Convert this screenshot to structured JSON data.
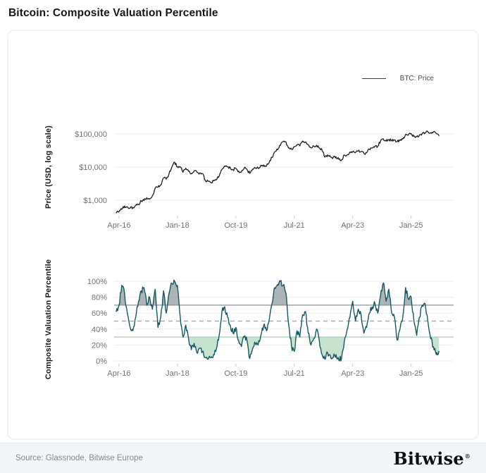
{
  "title": "Bitcoin: Composite Valuation Percentile",
  "legend": {
    "items": [
      {
        "label": "BTC: Price",
        "color": "#3a3d40"
      }
    ]
  },
  "footer": {
    "source": "Source: Glassnode, Bitwise Europe",
    "brand": "Bitwise",
    "brand_mark": "®"
  },
  "colors": {
    "price_line": "#1f1f1f",
    "percentile_line": "#155863",
    "above_fill": "#99a1a6",
    "below_fill": "#c3e2cd",
    "gridline": "#ededee",
    "threshold_high": "#8c9196",
    "threshold_mid": "#9aa0a6",
    "threshold_low": "#a5cdb4"
  },
  "chart_data": [
    {
      "type": "line",
      "panel": "price",
      "ylabel": "Price (USD, log scale)",
      "yscale": "log",
      "ytick_labels": [
        "$100,000",
        "$10,000",
        "$1,000"
      ],
      "ytick_values": [
        100000,
        10000,
        1000
      ],
      "ylim": [
        400,
        160000
      ],
      "x_monthly_start": "Mar-16",
      "x_monthly_end": "Nov-25",
      "xtick_labels": [
        "Apr-16",
        "Jan-18",
        "Oct-19",
        "Jul-21",
        "Apr-23",
        "Jan-25"
      ],
      "xtick_indices": [
        1,
        22,
        43,
        64,
        85,
        106
      ],
      "legend_position": "top-right",
      "grid": true,
      "series": [
        {
          "name": "BTC: Price",
          "color": "#1f1f1f",
          "values": [
            415,
            450,
            530,
            670,
            625,
            575,
            610,
            700,
            745,
            960,
            970,
            1190,
            1080,
            1350,
            2300,
            2480,
            2875,
            4700,
            4340,
            6450,
            10000,
            14100,
            10200,
            10300,
            6930,
            9240,
            7490,
            6400,
            7750,
            7030,
            6630,
            6300,
            4020,
            3740,
            3460,
            3850,
            4100,
            5320,
            8560,
            10800,
            10080,
            9630,
            8290,
            9150,
            7550,
            7190,
            9350,
            8600,
            6440,
            8660,
            9450,
            9140,
            11350,
            11650,
            10780,
            13800,
            19700,
            29000,
            33100,
            45100,
            58800,
            57750,
            37300,
            35000,
            41500,
            47150,
            43800,
            61300,
            57000,
            46200,
            38480,
            43200,
            45540,
            37630,
            31790,
            19985,
            23300,
            20050,
            19430,
            20490,
            17160,
            16540,
            23140,
            23150,
            28480,
            29250,
            27220,
            30480,
            29230,
            25930,
            26970,
            34650,
            37720,
            42270,
            42580,
            61200,
            71330,
            60640,
            67540,
            62680,
            64620,
            58970,
            63330,
            70220,
            96400,
            93430,
            102400,
            84380,
            82550,
            94180,
            104600,
            107100,
            115800,
            108200,
            114000,
            104000,
            88000
          ]
        }
      ]
    },
    {
      "type": "line",
      "panel": "percentile",
      "ylabel": "Composite Valuation Percentile",
      "ytick_labels": [
        "100%",
        "80%",
        "60%",
        "40%",
        "20%",
        "0%"
      ],
      "ytick_values": [
        100,
        80,
        60,
        40,
        20,
        0
      ],
      "ylim": [
        0,
        100
      ],
      "x_monthly_start": "Mar-16",
      "x_monthly_end": "Nov-25",
      "xtick_labels": [
        "Apr-16",
        "Jan-18",
        "Oct-19",
        "Jul-21",
        "Apr-23",
        "Jan-25"
      ],
      "xtick_indices": [
        1,
        22,
        43,
        64,
        85,
        106
      ],
      "grid": true,
      "reference_lines": [
        {
          "value": 70,
          "style": "solid",
          "color": "#8c9196"
        },
        {
          "value": 50,
          "style": "dashed",
          "color": "#9aa0a6"
        },
        {
          "value": 30,
          "style": "solid",
          "color": "#a5cdb4"
        }
      ],
      "shading": {
        "above": {
          "threshold": 70,
          "color": "#99a1a6",
          "meaning": "overvalued zone"
        },
        "below": {
          "threshold": 30,
          "color": "#c3e2cd",
          "meaning": "undervalued zone"
        }
      },
      "series": [
        {
          "name": "Composite Valuation Percentile",
          "color": "#155863",
          "values": [
            62,
            70,
            95,
            85,
            60,
            42,
            38,
            55,
            75,
            88,
            92,
            70,
            80,
            65,
            90,
            42,
            55,
            88,
            60,
            85,
            97,
            100,
            95,
            55,
            30,
            45,
            28,
            14,
            22,
            10,
            16,
            12,
            4,
            2,
            4,
            8,
            15,
            32,
            62,
            68,
            55,
            45,
            35,
            42,
            25,
            18,
            30,
            26,
            3,
            15,
            22,
            20,
            32,
            45,
            38,
            52,
            72,
            92,
            96,
            100,
            95,
            85,
            45,
            18,
            12,
            38,
            30,
            58,
            62,
            35,
            20,
            28,
            40,
            25,
            8,
            2,
            10,
            6,
            4,
            8,
            1,
            3,
            25,
            40,
            55,
            75,
            50,
            65,
            58,
            35,
            42,
            60,
            68,
            72,
            60,
            82,
            98,
            75,
            90,
            60,
            55,
            26,
            40,
            55,
            92,
            78,
            80,
            50,
            32,
            55,
            70,
            72,
            50,
            28,
            18,
            8,
            12
          ]
        }
      ]
    }
  ]
}
